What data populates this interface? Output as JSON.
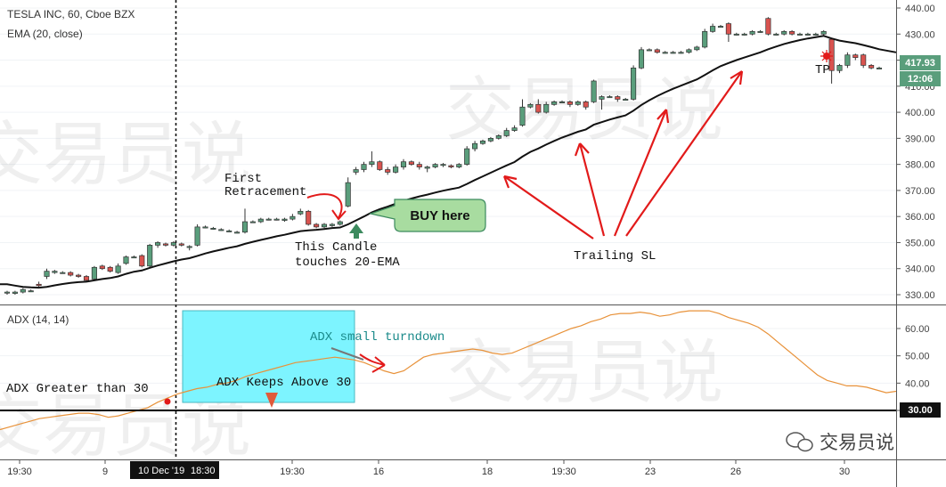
{
  "header": {
    "title": "TESLA INC, 60, Cboe BZX",
    "indicator": "EMA (20, close)",
    "adx_label": "ADX (14, 14)"
  },
  "price_badges": {
    "last_price": "417.93",
    "countdown": "12:06",
    "adx_level": "30.00"
  },
  "annotations": {
    "first_retracement_l1": "First",
    "first_retracement_l2": "Retracement",
    "candle_touch_l1": "This Candle",
    "candle_touch_l2": "touches 20-EMA",
    "buy_here": "BUY here",
    "trailing_sl": "Trailing SL",
    "tp": "TP",
    "adx_greater": "ADX Greater than 30",
    "adx_keeps": "ADX Keeps Above 30",
    "adx_turndown": "ADX small turndown"
  },
  "watermark": {
    "text": "交易员说",
    "logo_text": "交易员说"
  },
  "colors": {
    "up": "#5a9e7c",
    "down": "#d9534f",
    "ema": "#111111",
    "adx": "#e8923a",
    "highlight": "#7df4ff",
    "buy_bubble": "#a8dca0",
    "arrow": "#e21a1a",
    "up_arrow": "#3c8a5e",
    "down_arrow": "#e05a3a"
  },
  "chart_data": [
    {
      "type": "candlestick",
      "title": "TESLA INC, 60, Cboe BZX",
      "ylim": [
        325,
        441
      ],
      "y_ticks": [
        330,
        340,
        350,
        360,
        370,
        380,
        390,
        400,
        410,
        420,
        430,
        440
      ],
      "x_ticks": [
        "19:30",
        "9",
        "10 Dec '19",
        "18:30",
        "19:30",
        "16",
        "18",
        "19:30",
        "23",
        "26",
        "30"
      ],
      "candles": [
        [
          331,
          331,
          331.5,
          330
        ],
        [
          330.5,
          331,
          331.5,
          330
        ],
        [
          331,
          332,
          332.5,
          330.5
        ],
        [
          331.5,
          331.5,
          332,
          331
        ],
        [
          334,
          333.5,
          335,
          333
        ],
        [
          337,
          339,
          340,
          336
        ],
        [
          338.5,
          339,
          339.5,
          338
        ],
        [
          338.5,
          338.5,
          339,
          338
        ],
        [
          338.5,
          337.5,
          339,
          337
        ],
        [
          337.5,
          337,
          338,
          336.5
        ],
        [
          337,
          335.5,
          337.5,
          335
        ],
        [
          336,
          340.5,
          341,
          335.5
        ],
        [
          341,
          340,
          341.5,
          339.5
        ],
        [
          340.5,
          339,
          341,
          338.5
        ],
        [
          338.5,
          341,
          342,
          338
        ],
        [
          342,
          344.5,
          345,
          341.5
        ],
        [
          344.5,
          344.5,
          345,
          344
        ],
        [
          345,
          341,
          345.5,
          340.5
        ],
        [
          341,
          349,
          349.5,
          340.5
        ],
        [
          349,
          350,
          350.5,
          348
        ],
        [
          349.5,
          349,
          350,
          348.5
        ],
        [
          349,
          350,
          350.5,
          348.5
        ],
        [
          349.5,
          349,
          350,
          348.5
        ],
        [
          348.5,
          348.5,
          349,
          347
        ],
        [
          349,
          356,
          357,
          348.5
        ],
        [
          356,
          356,
          356.5,
          355.5
        ],
        [
          355.5,
          355.5,
          356,
          355
        ],
        [
          355,
          355,
          355.5,
          354.5
        ],
        [
          354.5,
          354.5,
          355,
          354
        ],
        [
          354,
          354,
          354.5,
          353.5
        ],
        [
          354,
          358,
          363,
          353.5
        ],
        [
          358,
          358,
          358.5,
          357.5
        ],
        [
          358,
          359,
          359.5,
          357.5
        ],
        [
          359,
          359,
          359.5,
          358.5
        ],
        [
          359,
          359,
          359.5,
          358.5
        ],
        [
          358.5,
          359,
          359.5,
          358
        ],
        [
          359,
          360,
          361,
          358.5
        ],
        [
          361,
          362,
          363,
          360.5
        ],
        [
          362,
          357,
          362.5,
          356.5
        ],
        [
          357,
          356,
          357.5,
          355.5
        ],
        [
          356,
          357,
          357.5,
          355.5
        ],
        [
          356.5,
          357,
          357.5,
          356
        ],
        [
          357,
          358,
          358.5,
          356.5
        ],
        [
          364,
          373,
          375,
          363.5
        ],
        [
          377,
          378,
          379,
          376
        ],
        [
          378,
          380,
          381,
          377
        ],
        [
          380,
          381,
          385,
          379
        ],
        [
          381,
          378,
          381.5,
          377.5
        ],
        [
          378,
          377,
          379,
          376
        ],
        [
          377,
          379,
          380,
          376.5
        ],
        [
          379,
          381,
          382,
          378
        ],
        [
          381,
          380,
          381.5,
          379.5
        ],
        [
          380,
          379,
          381,
          378
        ],
        [
          378.5,
          379,
          379.5,
          377
        ],
        [
          379,
          380,
          380.5,
          378.5
        ],
        [
          380,
          380,
          380.5,
          379
        ],
        [
          379.5,
          379,
          380,
          378.5
        ],
        [
          379,
          380,
          380.5,
          378.5
        ],
        [
          380,
          386,
          387,
          379.5
        ],
        [
          386,
          388,
          389,
          385
        ],
        [
          388,
          389,
          389.5,
          387.5
        ],
        [
          389,
          390,
          390.5,
          388.5
        ],
        [
          390,
          391,
          391.5,
          389.5
        ],
        [
          391,
          393,
          394,
          390.5
        ],
        [
          393,
          394,
          395,
          392.5
        ],
        [
          395,
          402,
          405,
          394.5
        ],
        [
          402,
          403,
          403.5,
          401.5
        ],
        [
          403,
          400,
          405,
          399.5
        ],
        [
          400,
          403,
          404,
          399.5
        ],
        [
          403,
          404,
          404.5,
          402.5
        ],
        [
          404,
          404,
          404.5,
          403.5
        ],
        [
          404,
          403,
          404.5,
          402
        ],
        [
          403,
          404,
          404.5,
          402.5
        ],
        [
          404,
          402,
          404.5,
          401
        ],
        [
          404,
          412,
          412.5,
          403.5
        ],
        [
          405,
          406,
          406.5,
          401
        ],
        [
          406,
          406,
          406.5,
          405.5
        ],
        [
          406,
          405,
          406.5,
          404
        ],
        [
          405,
          405,
          405.5,
          404.5
        ],
        [
          405,
          417,
          418,
          404.5
        ],
        [
          417,
          424,
          425,
          416.5
        ],
        [
          424,
          424,
          424.5,
          423.5
        ],
        [
          424,
          423,
          424.5,
          422.5
        ],
        [
          423,
          423,
          423.5,
          422.5
        ],
        [
          423,
          423,
          423.5,
          422.5
        ],
        [
          423,
          423,
          423.5,
          422.5
        ],
        [
          423,
          424,
          424.5,
          422.5
        ],
        [
          424,
          425,
          425.5,
          423.5
        ],
        [
          425,
          431,
          432,
          424.5
        ],
        [
          431,
          433,
          434,
          430.5
        ],
        [
          433,
          433,
          433.5,
          432.5
        ],
        [
          434,
          430,
          434.5,
          427
        ],
        [
          430,
          430,
          430.5,
          429.5
        ],
        [
          430,
          430,
          430.5,
          429.5
        ],
        [
          430,
          431,
          431.5,
          429.5
        ],
        [
          431,
          431,
          431.5,
          430.5
        ],
        [
          436,
          430,
          436.5,
          429.5
        ],
        [
          430,
          430,
          430.5,
          429.5
        ],
        [
          430,
          431,
          431.5,
          429.5
        ],
        [
          431,
          430,
          431.5,
          429.5
        ],
        [
          430,
          430,
          430.5,
          429.5
        ],
        [
          430,
          430,
          430.5,
          429.5
        ],
        [
          430,
          430,
          430.5,
          429.5
        ],
        [
          430,
          431,
          431.5,
          429.5
        ],
        [
          428,
          416,
          428.5,
          411
        ],
        [
          416,
          418,
          418.5,
          415
        ],
        [
          418,
          422,
          423,
          417
        ],
        [
          422,
          421,
          422.5,
          420
        ],
        [
          422,
          418,
          422.5,
          417
        ],
        [
          418,
          417,
          418.5,
          416.5
        ],
        [
          417,
          417,
          417.5,
          416.5
        ]
      ],
      "ema20": [
        334,
        333.5,
        333,
        332.8,
        332.7,
        333,
        333.6,
        334.1,
        334.5,
        334.8,
        335,
        335.5,
        336,
        336.4,
        337,
        338,
        338.8,
        339.3,
        340.3,
        341.2,
        342,
        342.8,
        343.5,
        344,
        344.9,
        345.8,
        346.6,
        347.3,
        348,
        348.6,
        349.5,
        350.3,
        351,
        351.7,
        352.4,
        353,
        353.7,
        354.4,
        354.7,
        354.9,
        355.2,
        355.6,
        355.8,
        357,
        358.5,
        360,
        361.6,
        362.8,
        363.8,
        364.9,
        366,
        366.9,
        367.7,
        368.4,
        369.2,
        369.9,
        370.5,
        371.1,
        372.5,
        374,
        375.4,
        376.8,
        378.2,
        379.6,
        380.9,
        383,
        384.8,
        386.1,
        387.6,
        389,
        390.3,
        391.4,
        392.5,
        393.4,
        395.2,
        396.2,
        397.2,
        398,
        398.8,
        400.6,
        402.8,
        404.6,
        406.2,
        407.7,
        409,
        410.2,
        411.4,
        412.6,
        414.3,
        416.1,
        417.7,
        418.9,
        420,
        421,
        422,
        423,
        424.2,
        425.2,
        426.2,
        427,
        427.7,
        428.3,
        428.8,
        429.3,
        428.3,
        427.5,
        427,
        426.5,
        425.8,
        425,
        424.2
      ]
    },
    {
      "type": "line",
      "title": "ADX (14, 14)",
      "ylim": [
        20.5,
        68
      ],
      "y_ticks": [
        30,
        40,
        50,
        60
      ],
      "reference_line": 30,
      "adx": [
        23,
        24,
        25,
        26,
        27,
        27.5,
        28,
        28.5,
        29,
        29,
        28.5,
        27.5,
        28,
        29,
        30,
        31,
        33,
        34.5,
        36,
        37,
        38,
        38.5,
        39.5,
        40,
        41,
        42.5,
        43.5,
        44.5,
        45.5,
        46.5,
        47.5,
        48,
        48.5,
        49,
        49.5,
        49,
        48.5,
        47.5,
        46,
        44.5,
        43.5,
        44.5,
        47,
        49.5,
        50.5,
        51,
        51.5,
        52,
        52.5,
        52,
        51,
        50.5,
        51,
        52.5,
        54,
        55.5,
        57,
        58.5,
        60,
        61,
        62.5,
        63.5,
        65,
        65.5,
        65.5,
        66,
        65.5,
        64.5,
        65,
        66,
        66.5,
        66.5,
        66.5,
        65.5,
        64,
        63,
        62,
        60.5,
        58,
        55,
        52,
        49,
        46,
        43,
        41,
        40,
        39,
        39,
        38.5,
        37.5,
        36.5,
        37
      ]
    }
  ]
}
